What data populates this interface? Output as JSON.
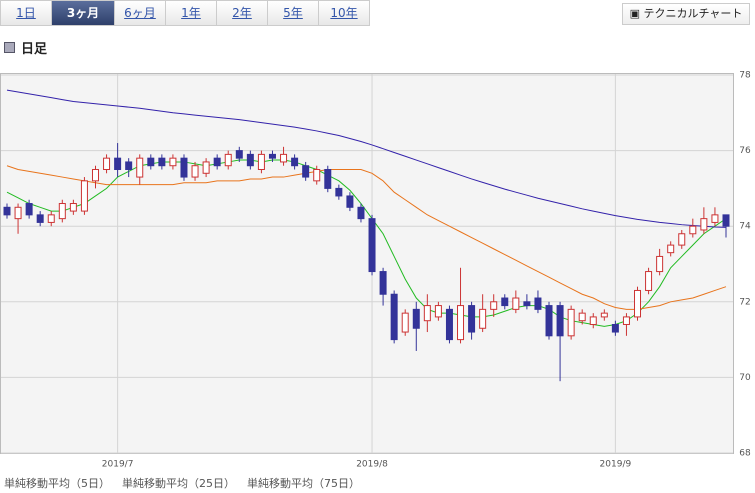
{
  "tabs": [
    {
      "label": "1日",
      "active": false
    },
    {
      "label": "3ヶ月",
      "active": true
    },
    {
      "label": "6ヶ月",
      "active": false
    },
    {
      "label": "1年",
      "active": false
    },
    {
      "label": "2年",
      "active": false
    },
    {
      "label": "5年",
      "active": false
    },
    {
      "label": "10年",
      "active": false
    }
  ],
  "button": "テクニカルチャート",
  "heading": "日足",
  "chart_data": {
    "type": "candlestick",
    "up_color": "#cc3333",
    "down_color": "#333399",
    "grid": true,
    "categories": [
      null,
      null,
      null,
      null,
      null,
      null,
      null,
      null,
      null,
      null,
      "2019/7",
      null,
      null,
      null,
      null,
      null,
      null,
      null,
      null,
      null,
      null,
      null,
      null,
      null,
      null,
      null,
      null,
      null,
      null,
      null,
      null,
      null,
      null,
      "2019/8",
      null,
      null,
      null,
      null,
      null,
      null,
      null,
      null,
      null,
      null,
      null,
      null,
      null,
      null,
      null,
      null,
      null,
      null,
      null,
      null,
      null,
      "2019/9",
      null,
      null,
      null,
      null,
      null,
      null,
      null,
      null,
      null,
      null
    ],
    "candles": {
      "open": [
        74.5,
        74.2,
        74.6,
        74.3,
        74.1,
        74.2,
        74.4,
        74.4,
        75.2,
        75.5,
        75.8,
        75.7,
        75.3,
        75.8,
        75.8,
        75.6,
        75.8,
        75.3,
        75.4,
        75.8,
        75.6,
        76.0,
        75.9,
        75.5,
        75.9,
        75.7,
        75.8,
        75.6,
        75.2,
        75.5,
        75.0,
        74.8,
        74.5,
        74.2,
        72.8,
        72.2,
        71.2,
        71.8,
        71.5,
        71.6,
        71.8,
        71.0,
        71.9,
        71.3,
        71.8,
        72.1,
        71.8,
        72.0,
        72.1,
        71.9,
        71.9,
        71.1,
        71.5,
        71.4,
        71.6,
        71.4,
        71.4,
        71.6,
        72.3,
        72.8,
        73.3,
        73.5,
        73.8,
        73.9,
        74.1,
        74.3
      ],
      "high": [
        74.6,
        74.6,
        74.7,
        74.4,
        74.4,
        74.7,
        74.7,
        75.3,
        75.6,
        75.9,
        76.2,
        75.8,
        75.9,
        75.9,
        75.9,
        75.9,
        75.9,
        75.7,
        75.8,
        75.9,
        76.0,
        76.1,
        76.0,
        76.0,
        76.0,
        76.1,
        75.9,
        75.7,
        75.6,
        75.6,
        75.1,
        74.9,
        74.6,
        74.3,
        72.9,
        72.3,
        71.8,
        72.0,
        72.2,
        72.0,
        71.9,
        72.9,
        72.0,
        72.2,
        72.2,
        72.2,
        72.3,
        72.2,
        72.3,
        72.0,
        72.0,
        71.9,
        71.8,
        71.7,
        71.8,
        71.5,
        71.7,
        72.4,
        72.9,
        73.4,
        73.6,
        73.9,
        74.2,
        74.5,
        74.5,
        74.2
      ],
      "low": [
        74.2,
        73.8,
        74.2,
        74.0,
        74.0,
        74.1,
        74.3,
        74.3,
        75.0,
        75.4,
        75.3,
        75.3,
        75.1,
        75.5,
        75.5,
        75.5,
        75.2,
        75.2,
        75.3,
        75.5,
        75.5,
        75.7,
        75.5,
        75.4,
        75.7,
        75.6,
        75.5,
        75.2,
        75.1,
        74.9,
        74.7,
        74.4,
        74.1,
        72.7,
        71.9,
        70.9,
        71.1,
        70.7,
        71.2,
        71.5,
        70.9,
        70.9,
        71.0,
        71.2,
        71.6,
        71.8,
        71.7,
        71.8,
        71.7,
        71.0,
        69.9,
        71.0,
        71.4,
        71.3,
        71.5,
        71.1,
        71.1,
        71.5,
        72.2,
        72.7,
        73.2,
        73.4,
        73.7,
        73.8,
        74.0,
        73.7
      ],
      "close": [
        74.3,
        74.5,
        74.3,
        74.1,
        74.3,
        74.6,
        74.6,
        75.2,
        75.5,
        75.8,
        75.5,
        75.5,
        75.8,
        75.6,
        75.6,
        75.8,
        75.3,
        75.6,
        75.7,
        75.6,
        75.9,
        75.8,
        75.6,
        75.9,
        75.8,
        75.9,
        75.6,
        75.3,
        75.5,
        75.0,
        74.8,
        74.5,
        74.2,
        72.8,
        72.2,
        71.0,
        71.7,
        71.3,
        71.9,
        71.9,
        71.0,
        71.9,
        71.2,
        71.8,
        72.0,
        71.9,
        72.1,
        71.9,
        71.8,
        71.1,
        71.1,
        71.8,
        71.7,
        71.6,
        71.7,
        71.2,
        71.6,
        72.3,
        72.8,
        73.2,
        73.5,
        73.8,
        74.0,
        74.2,
        74.3,
        74.0
      ]
    },
    "series": [
      {
        "name": "単純移動平均（5日）",
        "color": "#22bb22",
        "values": [
          74.9,
          74.75,
          74.6,
          74.5,
          74.4,
          74.4,
          74.5,
          74.6,
          74.8,
          75.0,
          75.3,
          75.45,
          75.6,
          75.65,
          75.7,
          75.7,
          75.7,
          75.65,
          75.6,
          75.65,
          75.7,
          75.75,
          75.75,
          75.7,
          75.75,
          75.75,
          75.7,
          75.6,
          75.5,
          75.35,
          75.2,
          74.95,
          74.6,
          74.2,
          73.8,
          73.2,
          72.6,
          72.1,
          71.8,
          71.7,
          71.7,
          71.65,
          71.6,
          71.6,
          71.65,
          71.75,
          71.85,
          71.9,
          71.9,
          71.8,
          71.6,
          71.5,
          71.45,
          71.4,
          71.35,
          71.4,
          71.5,
          71.7,
          72.0,
          72.4,
          72.9,
          73.2,
          73.5,
          73.8,
          74.0,
          74.2
        ]
      },
      {
        "name": "単純移動平均（25日）",
        "color": "#e8741c",
        "values": [
          75.6,
          75.5,
          75.45,
          75.4,
          75.35,
          75.3,
          75.25,
          75.2,
          75.15,
          75.1,
          75.1,
          75.1,
          75.1,
          75.1,
          75.1,
          75.1,
          75.15,
          75.15,
          75.15,
          75.2,
          75.2,
          75.2,
          75.25,
          75.25,
          75.3,
          75.3,
          75.35,
          75.4,
          75.45,
          75.5,
          75.5,
          75.5,
          75.5,
          75.4,
          75.2,
          74.9,
          74.7,
          74.5,
          74.3,
          74.15,
          74.0,
          73.85,
          73.7,
          73.55,
          73.4,
          73.25,
          73.1,
          72.95,
          72.8,
          72.65,
          72.5,
          72.35,
          72.2,
          72.1,
          71.95,
          71.85,
          71.8,
          71.8,
          71.85,
          71.9,
          72.0,
          72.05,
          72.1,
          72.2,
          72.3,
          72.4
        ]
      },
      {
        "name": "単純移動平均（75日）",
        "color": "#3322aa",
        "values": [
          77.6,
          77.55,
          77.5,
          77.45,
          77.4,
          77.35,
          77.3,
          77.27,
          77.24,
          77.21,
          77.18,
          77.15,
          77.12,
          77.08,
          77.04,
          77.0,
          76.97,
          76.94,
          76.91,
          76.88,
          76.85,
          76.82,
          76.78,
          76.74,
          76.7,
          76.66,
          76.62,
          76.57,
          76.52,
          76.46,
          76.4,
          76.32,
          76.24,
          76.15,
          76.05,
          75.95,
          75.85,
          75.75,
          75.65,
          75.55,
          75.45,
          75.35,
          75.25,
          75.16,
          75.07,
          74.98,
          74.9,
          74.82,
          74.74,
          74.67,
          74.6,
          74.53,
          74.46,
          74.4,
          74.34,
          74.28,
          74.23,
          74.18,
          74.14,
          74.1,
          74.07,
          74.04,
          74.02,
          74.0,
          73.98,
          73.97
        ]
      }
    ],
    "ylim": [
      68,
      78
    ],
    "yticks": [
      68,
      70,
      72,
      74,
      76,
      78
    ]
  }
}
